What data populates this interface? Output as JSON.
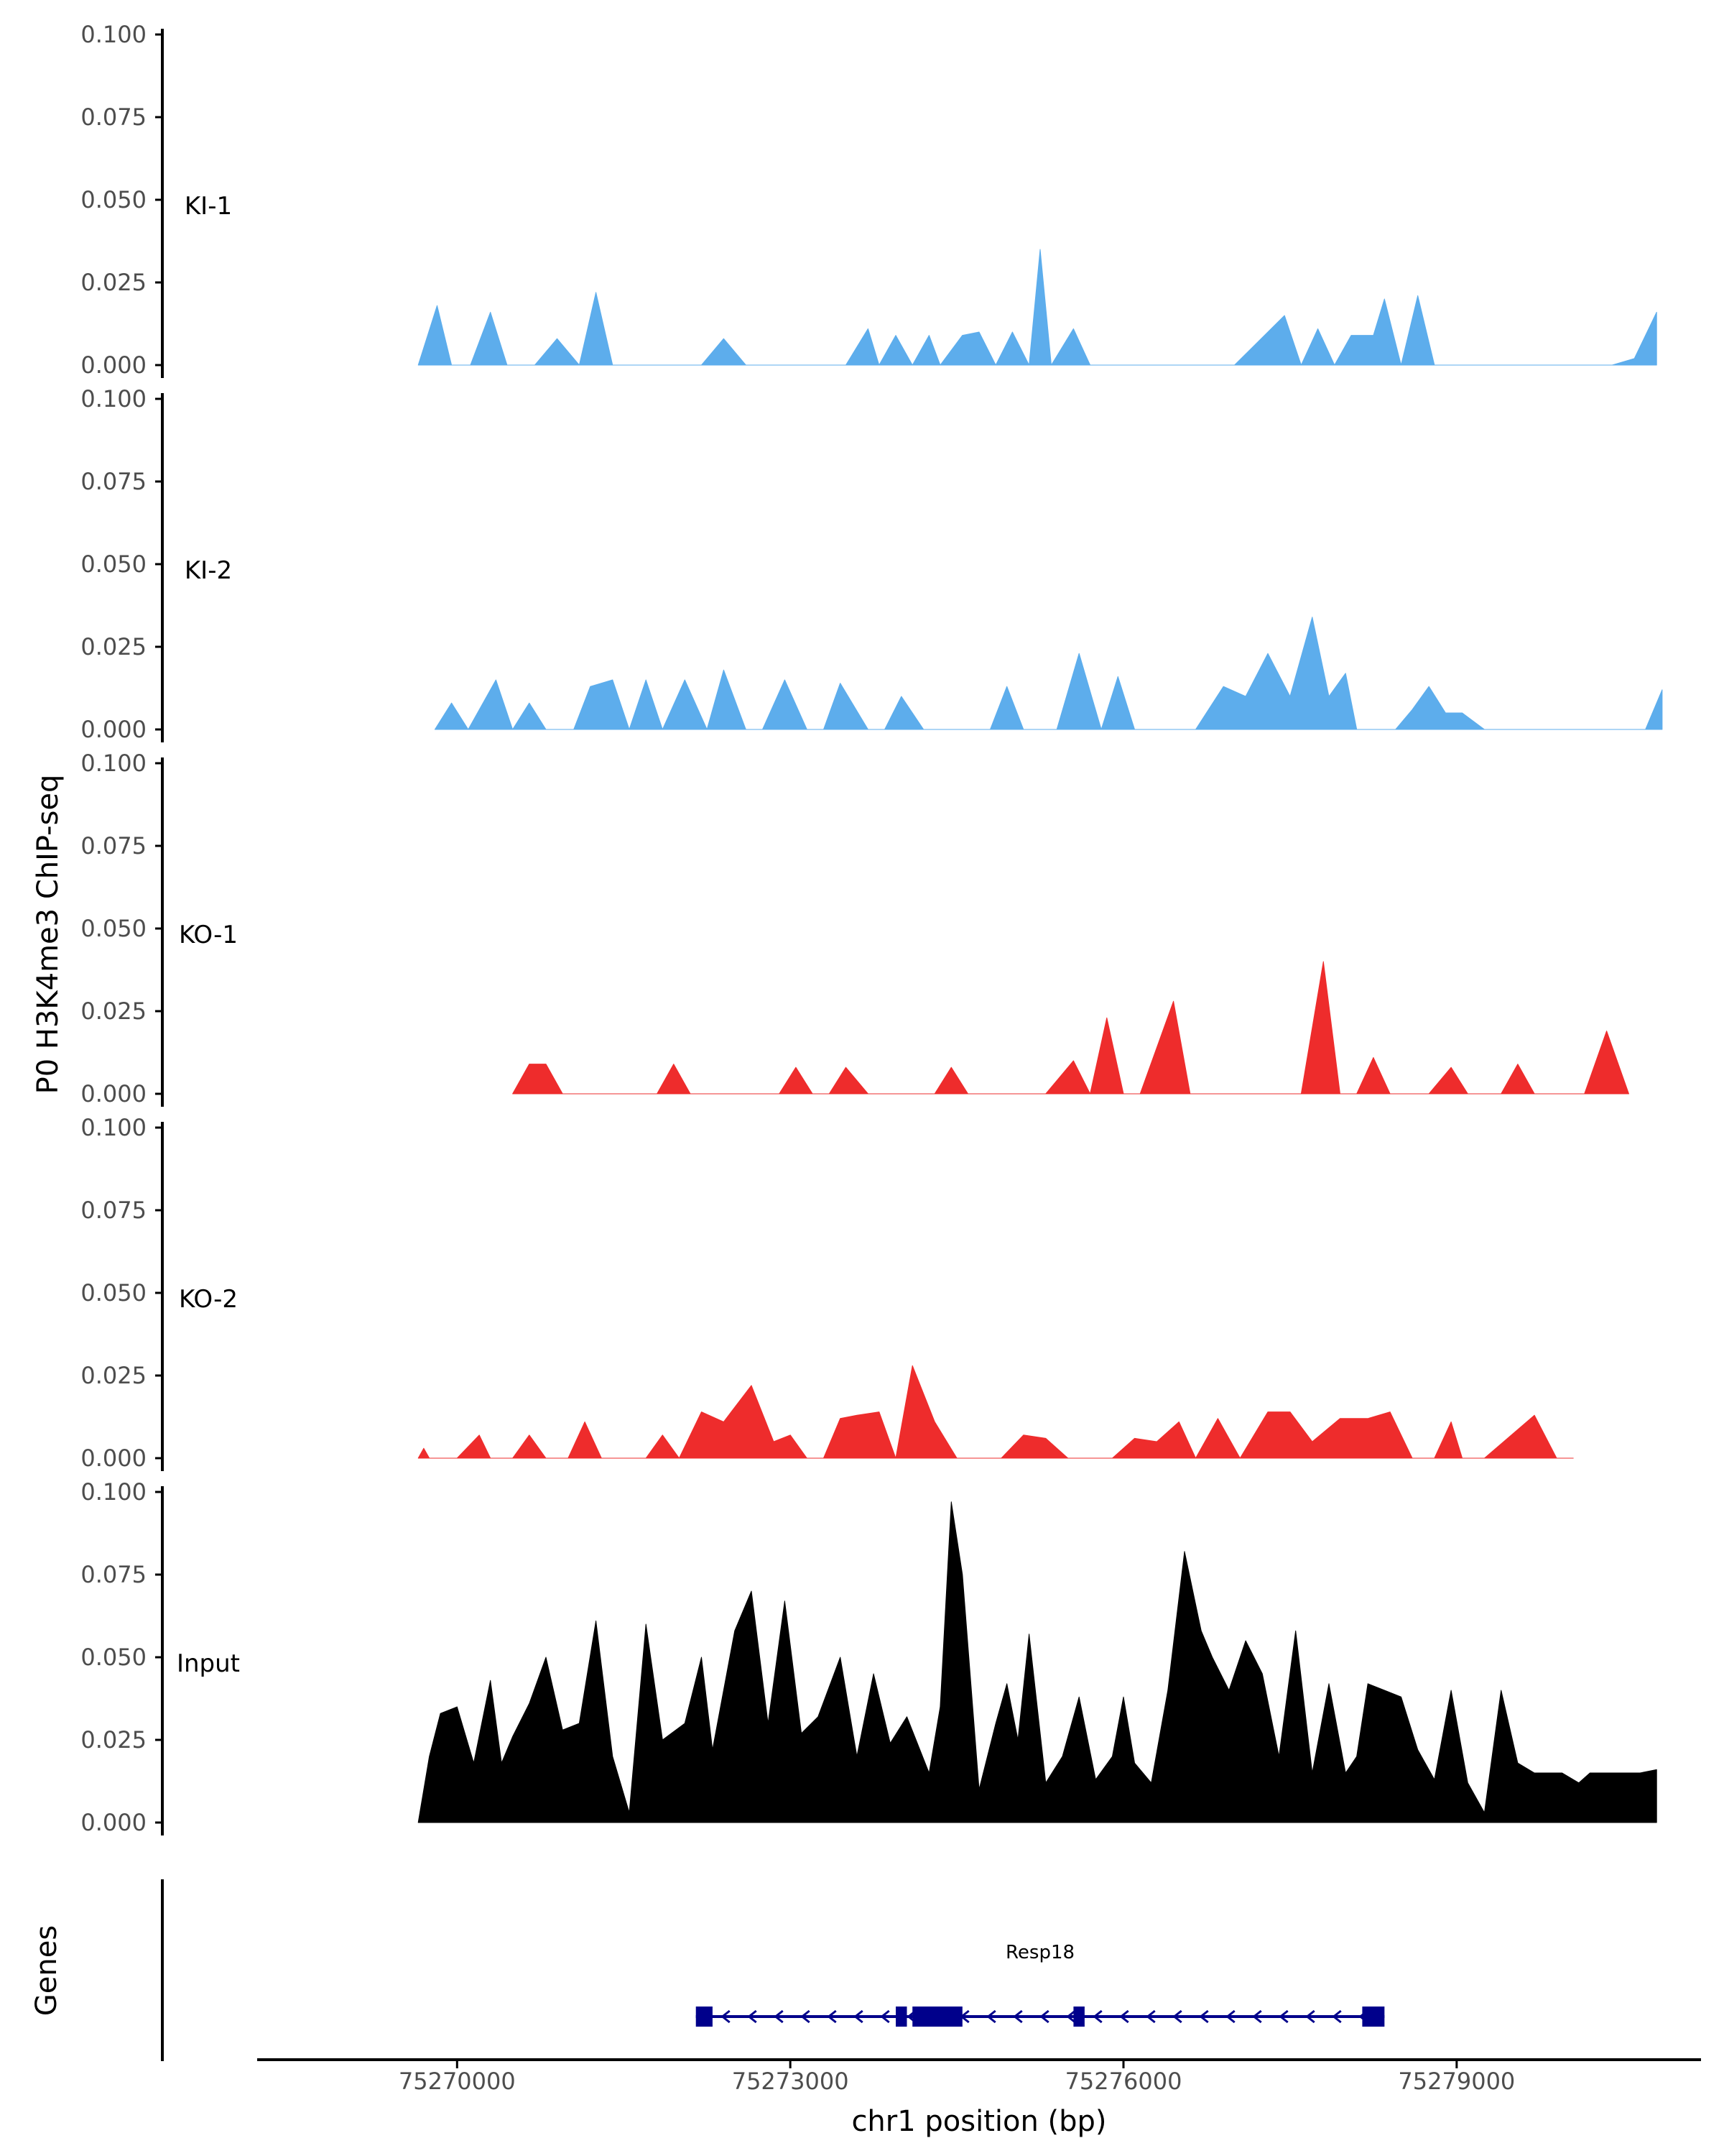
{
  "chart_data": {
    "type": "area",
    "ylabel": "P0 H3K4me3 ChIP-seq",
    "xlabel": "chr1 position (bp)",
    "xlim": [
      75268200,
      75281200
    ],
    "x_ticks": [
      {
        "value": 75270000,
        "label": "75270000"
      },
      {
        "value": 75273000,
        "label": "75273000"
      },
      {
        "value": 75276000,
        "label": "75276000"
      },
      {
        "value": 75279000,
        "label": "75279000"
      }
    ],
    "ylim": [
      0,
      0.1
    ],
    "y_ticks": [
      {
        "value": 0,
        "label": "0.000"
      },
      {
        "value": 0.025,
        "label": "0.025"
      },
      {
        "value": 0.05,
        "label": "0.050"
      },
      {
        "value": 0.075,
        "label": "0.075"
      },
      {
        "value": 0.1,
        "label": "0.100"
      }
    ],
    "colors": {
      "KI": "#5DADEC",
      "KO": "#EE2C2C",
      "Input": "#000000",
      "gene": "#00008B"
    },
    "tracks": [
      {
        "name": "KI-1",
        "color": "#5DADEC",
        "x": [
          75269650,
          75269820,
          75269950,
          75270120,
          75270300,
          75270450,
          75270600,
          75270700,
          75270900,
          75271100,
          75271250,
          75271400,
          75271550,
          75271650,
          75271850,
          75272000,
          75272200,
          75272400,
          75272600,
          75272800,
          75273000,
          75273200,
          75273400,
          75273500,
          75273700,
          75273800,
          75273950,
          75274100,
          75274250,
          75274350,
          75274550,
          75274700,
          75274850,
          75275000,
          75275150,
          75275250,
          75275350,
          75275550,
          75275700,
          75275800,
          75276000,
          75276150,
          75276300,
          75276450,
          75276700,
          75277000,
          75277300,
          75277450,
          75277600,
          75277750,
          75277900,
          75278050,
          75278250,
          75278350,
          75278500,
          75278650,
          75278800,
          75278950,
          75279100,
          75279250,
          75279500,
          75279800,
          75280100,
          75280400,
          75280600,
          75280800
        ],
        "values": [
          0,
          0.018,
          0,
          0,
          0.016,
          0,
          0,
          0,
          0.008,
          0,
          0.022,
          0,
          0,
          0,
          0,
          0,
          0,
          0.008,
          0,
          0,
          0,
          0,
          0,
          0,
          0.011,
          0,
          0.009,
          0,
          0.009,
          0,
          0.009,
          0.01,
          0,
          0.01,
          0,
          0.035,
          0,
          0.011,
          0,
          0,
          0,
          0,
          0,
          0,
          0,
          0,
          0.01,
          0.015,
          0,
          0.011,
          0,
          0.009,
          0.009,
          0.02,
          0,
          0.021,
          0,
          0,
          0,
          0,
          0,
          0,
          0,
          0,
          0.002,
          0.016
        ]
      },
      {
        "name": "KI-2",
        "color": "#5DADEC",
        "x": [
          75269800,
          75269950,
          75270100,
          75270350,
          75270500,
          75270650,
          75270800,
          75271050,
          75271200,
          75271400,
          75271550,
          75271700,
          75271850,
          75272050,
          75272250,
          75272400,
          75272600,
          75272750,
          75272950,
          75273150,
          75273300,
          75273450,
          75273700,
          75273850,
          75274000,
          75274200,
          75274400,
          75274600,
          75274800,
          75274950,
          75275100,
          75275250,
          75275400,
          75275600,
          75275800,
          75275950,
          75276100,
          75276300,
          75276450,
          75276650,
          75276900,
          75277100,
          75277300,
          75277500,
          75277700,
          75277850,
          75278000,
          75278100,
          75278250,
          75278450,
          75278600,
          75278750,
          75278900,
          75279050,
          75279250,
          75279500,
          75279700,
          75279900,
          75280100,
          75280300,
          75280500,
          75280700,
          75280850
        ],
        "values": [
          0,
          0.008,
          0,
          0.015,
          0,
          0.008,
          0,
          0,
          0.013,
          0.015,
          0,
          0.015,
          0,
          0.015,
          0,
          0.018,
          0,
          0,
          0.015,
          0,
          0,
          0.014,
          0,
          0,
          0.01,
          0,
          0,
          0,
          0,
          0.013,
          0,
          0,
          0,
          0.023,
          0,
          0.016,
          0,
          0,
          0,
          0,
          0.013,
          0.01,
          0.023,
          0.01,
          0.034,
          0.01,
          0.017,
          0,
          0,
          0,
          0.006,
          0.013,
          0.005,
          0.005,
          0,
          0,
          0,
          0,
          0,
          0,
          0,
          0,
          0.012
        ]
      },
      {
        "name": "KO-1",
        "color": "#EE2C2C",
        "x": [
          75270500,
          75270650,
          75270800,
          75270950,
          75271800,
          75271950,
          75272100,
          75272900,
          75273050,
          75273200,
          75273350,
          75273500,
          75273700,
          75274300,
          75274450,
          75274600,
          75275300,
          75275550,
          75275700,
          75275850,
          75276000,
          75276150,
          75276450,
          75276600,
          75276750,
          75277600,
          75277800,
          75277950,
          75278100,
          75278250,
          75278400,
          75278750,
          75278950,
          75279100,
          75279400,
          75279550,
          75279700,
          75280150,
          75280350,
          75280550
        ],
        "values": [
          0,
          0.009,
          0.009,
          0,
          0,
          0.009,
          0,
          0,
          0.008,
          0,
          0,
          0.008,
          0,
          0,
          0.008,
          0,
          0,
          0.01,
          0,
          0.023,
          0,
          0,
          0.028,
          0,
          0,
          0,
          0.04,
          0,
          0,
          0.011,
          0,
          0,
          0.008,
          0,
          0,
          0.009,
          0,
          0,
          0.019,
          0
        ]
      },
      {
        "name": "KO-2",
        "color": "#EE2C2C",
        "x": [
          75269650,
          75269700,
          75269750,
          75270000,
          75270200,
          75270300,
          75270500,
          75270650,
          75270800,
          75271000,
          75271150,
          75271300,
          75271450,
          75271700,
          75271850,
          75272000,
          75272200,
          75272400,
          75272650,
          75272850,
          75273000,
          75273150,
          75273300,
          75273450,
          75273600,
          75273800,
          75273950,
          75274100,
          75274300,
          75274500,
          75274900,
          75275100,
          75275300,
          75275500,
          75275900,
          75276100,
          75276300,
          75276500,
          75276650,
          75276850,
          75277050,
          75277300,
          75277500,
          75277700,
          75277950,
          75278200,
          75278400,
          75278600,
          75278800,
          75278950,
          75279050,
          75279250,
          75279700,
          75279900,
          75280050
        ],
        "values": [
          0,
          0.003,
          0,
          0,
          0.007,
          0,
          0,
          0.007,
          0,
          0,
          0.011,
          0,
          0,
          0,
          0.007,
          0,
          0.014,
          0.011,
          0.022,
          0.005,
          0.007,
          0,
          0,
          0.012,
          0.013,
          0.014,
          0,
          0.028,
          0.011,
          0,
          0,
          0.007,
          0.006,
          0,
          0,
          0.006,
          0.005,
          0.011,
          0,
          0.012,
          0,
          0.014,
          0.014,
          0.005,
          0.012,
          0.012,
          0.014,
          0,
          0,
          0.011,
          0,
          0,
          0.013,
          0,
          0
        ]
      },
      {
        "name": "Input",
        "color": "#000000",
        "x": [
          75269650,
          75269750,
          75269850,
          75270000,
          75270150,
          75270300,
          75270400,
          75270500,
          75270650,
          75270800,
          75270950,
          75271100,
          75271250,
          75271400,
          75271550,
          75271700,
          75271850,
          75272050,
          75272200,
          75272300,
          75272500,
          75272650,
          75272800,
          75272950,
          75273100,
          75273250,
          75273450,
          75273600,
          75273750,
          75273900,
          75274050,
          75274250,
          75274350,
          75274450,
          75274550,
          75274700,
          75274850,
          75274950,
          75275050,
          75275150,
          75275300,
          75275450,
          75275600,
          75275750,
          75275900,
          75276000,
          75276100,
          75276250,
          75276400,
          75276550,
          75276700,
          75276800,
          75276950,
          75277100,
          75277250,
          75277400,
          75277550,
          75277700,
          75277850,
          75278000,
          75278100,
          75278200,
          75278350,
          75278500,
          75278650,
          75278800,
          75278950,
          75279100,
          75279250,
          75279400,
          75279550,
          75279700,
          75279800,
          75279950,
          75280100,
          75280200,
          75280350,
          75280500,
          75280650,
          75280800
        ],
        "values": [
          0,
          0.02,
          0.033,
          0.035,
          0.018,
          0.043,
          0.018,
          0.026,
          0.036,
          0.05,
          0.028,
          0.03,
          0.061,
          0.02,
          0.003,
          0.06,
          0.025,
          0.03,
          0.05,
          0.022,
          0.058,
          0.07,
          0.03,
          0.067,
          0.027,
          0.032,
          0.05,
          0.02,
          0.045,
          0.024,
          0.032,
          0.015,
          0.035,
          0.097,
          0.075,
          0.01,
          0.03,
          0.042,
          0.025,
          0.057,
          0.012,
          0.02,
          0.038,
          0.013,
          0.02,
          0.038,
          0.018,
          0.012,
          0.04,
          0.082,
          0.058,
          0.05,
          0.04,
          0.055,
          0.045,
          0.02,
          0.058,
          0.015,
          0.042,
          0.015,
          0.02,
          0.042,
          0.04,
          0.038,
          0.022,
          0.013,
          0.04,
          0.012,
          0.003,
          0.04,
          0.018,
          0.015,
          0.015,
          0.015,
          0.012,
          0.015,
          0.015,
          0.015,
          0.015,
          0.016
        ]
      }
    ],
    "gene_track": {
      "ylabel": "Genes",
      "genes": [
        {
          "name": "Resp18",
          "start": 75272150,
          "end": 75278350,
          "strand": "-",
          "exons": [
            [
              75272150,
              75272300
            ],
            [
              75273950,
              75274050
            ],
            [
              75274100,
              75274550
            ],
            [
              75275550,
              75275650
            ],
            [
              75278150,
              75278350
            ]
          ]
        }
      ]
    }
  }
}
